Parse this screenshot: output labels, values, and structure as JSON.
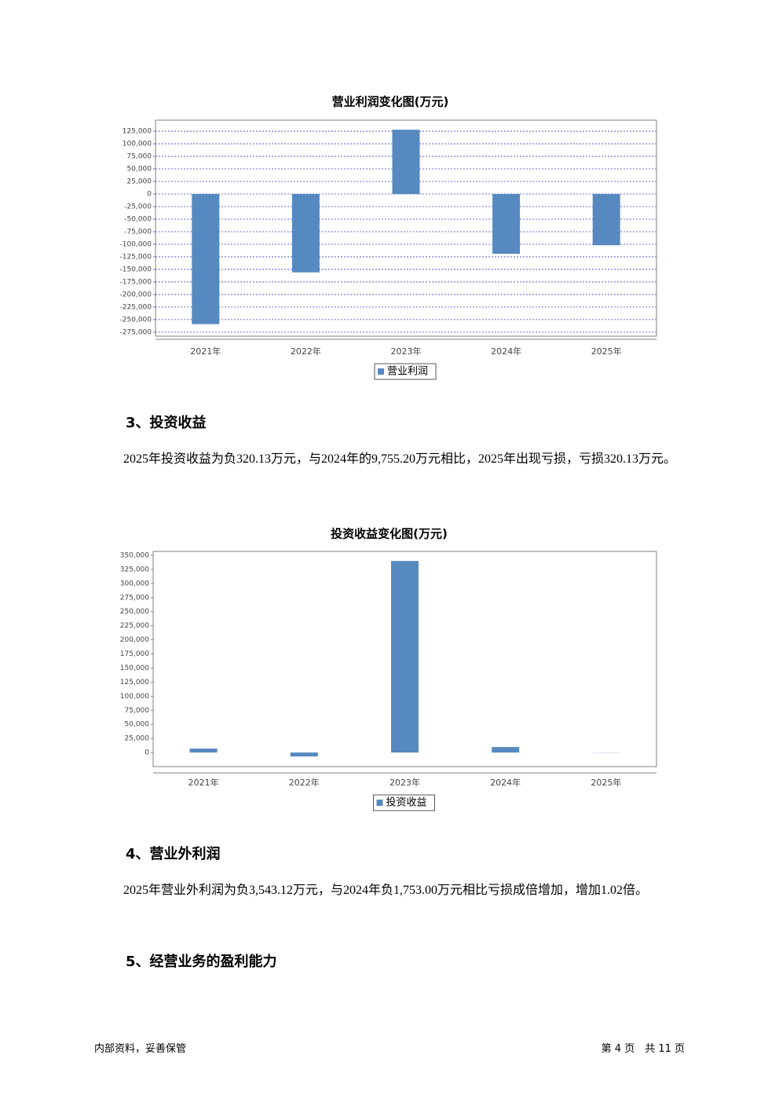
{
  "chart_data": [
    {
      "type": "bar",
      "title": "营业利润变化图(万元)",
      "categories": [
        "2021年",
        "2022年",
        "2023年",
        "2024年",
        "2025年"
      ],
      "series": [
        {
          "name": "营业利润",
          "color": "#5689bf",
          "values": [
            -259000,
            -156000,
            128000,
            -119000,
            -102000
          ]
        }
      ],
      "ylim": [
        -283000,
        147000
      ],
      "yticks": [
        {
          "value": 125000,
          "label": "125,000"
        },
        {
          "value": 100000,
          "label": "100,000"
        },
        {
          "value": 75000,
          "label": "75,000"
        },
        {
          "value": 50000,
          "label": "50,000"
        },
        {
          "value": 25000,
          "label": "25,000"
        },
        0,
        {
          "value": -25000,
          "label": "-25,000"
        },
        {
          "value": -50000,
          "label": "-50,000"
        },
        {
          "value": -75000,
          "label": "-75,000"
        },
        {
          "value": -100000,
          "label": "-100,000"
        },
        {
          "value": -125000,
          "label": "-125,000"
        },
        {
          "value": -150000,
          "label": "-150,000"
        },
        {
          "value": -175000,
          "label": "-175,000"
        },
        {
          "value": -200000,
          "label": "-200,000"
        },
        {
          "value": -225000,
          "label": "-225,000"
        },
        {
          "value": -250000,
          "label": "-250,000"
        },
        {
          "value": -275000,
          "label": "-275,000"
        }
      ],
      "grid": true,
      "legend": "bottom"
    },
    {
      "type": "bar",
      "title": "投资收益变化图(万元)",
      "categories": [
        "2021年",
        "2022年",
        "2023年",
        "2024年",
        "2025年"
      ],
      "series": [
        {
          "name": "投资收益",
          "color": "#5689bf",
          "values": [
            7000,
            -7000,
            340000,
            9755.2,
            -320.13
          ]
        }
      ],
      "ylim": [
        -25000,
        357000
      ],
      "yticks": [
        {
          "value": 350000,
          "label": "350,000"
        },
        {
          "value": 325000,
          "label": "325,000"
        },
        {
          "value": 300000,
          "label": "300,000"
        },
        {
          "value": 275000,
          "label": "275,000"
        },
        {
          "value": 250000,
          "label": "250,000"
        },
        {
          "value": 225000,
          "label": "225,000"
        },
        {
          "value": 200000,
          "label": "200,000"
        },
        {
          "value": 175000,
          "label": "175,000"
        },
        {
          "value": 150000,
          "label": "150,000"
        },
        {
          "value": 125000,
          "label": "125,000"
        },
        {
          "value": 100000,
          "label": "100,000"
        },
        {
          "value": 75000,
          "label": "75,000"
        },
        {
          "value": 50000,
          "label": "50,000"
        },
        {
          "value": 25000,
          "label": "25,000"
        },
        0
      ],
      "grid": false,
      "legend": "bottom"
    }
  ],
  "sections": [
    {
      "heading": "3、投资收益",
      "text": "2025年投资收益为负320.13万元，与2024年的9,755.20万元相比，2025年出现亏损，亏损320.13万元。"
    },
    {
      "heading": "4、营业外利润",
      "text": "2025年营业外利润为负3,543.12万元，与2024年负1,753.00万元相比亏损成倍增加，增加1.02倍。"
    },
    {
      "heading": "5、经营业务的盈利能力"
    }
  ],
  "footer": {
    "left": "内部资料，妥善保管",
    "right": "第 4 页　共 11 页"
  }
}
